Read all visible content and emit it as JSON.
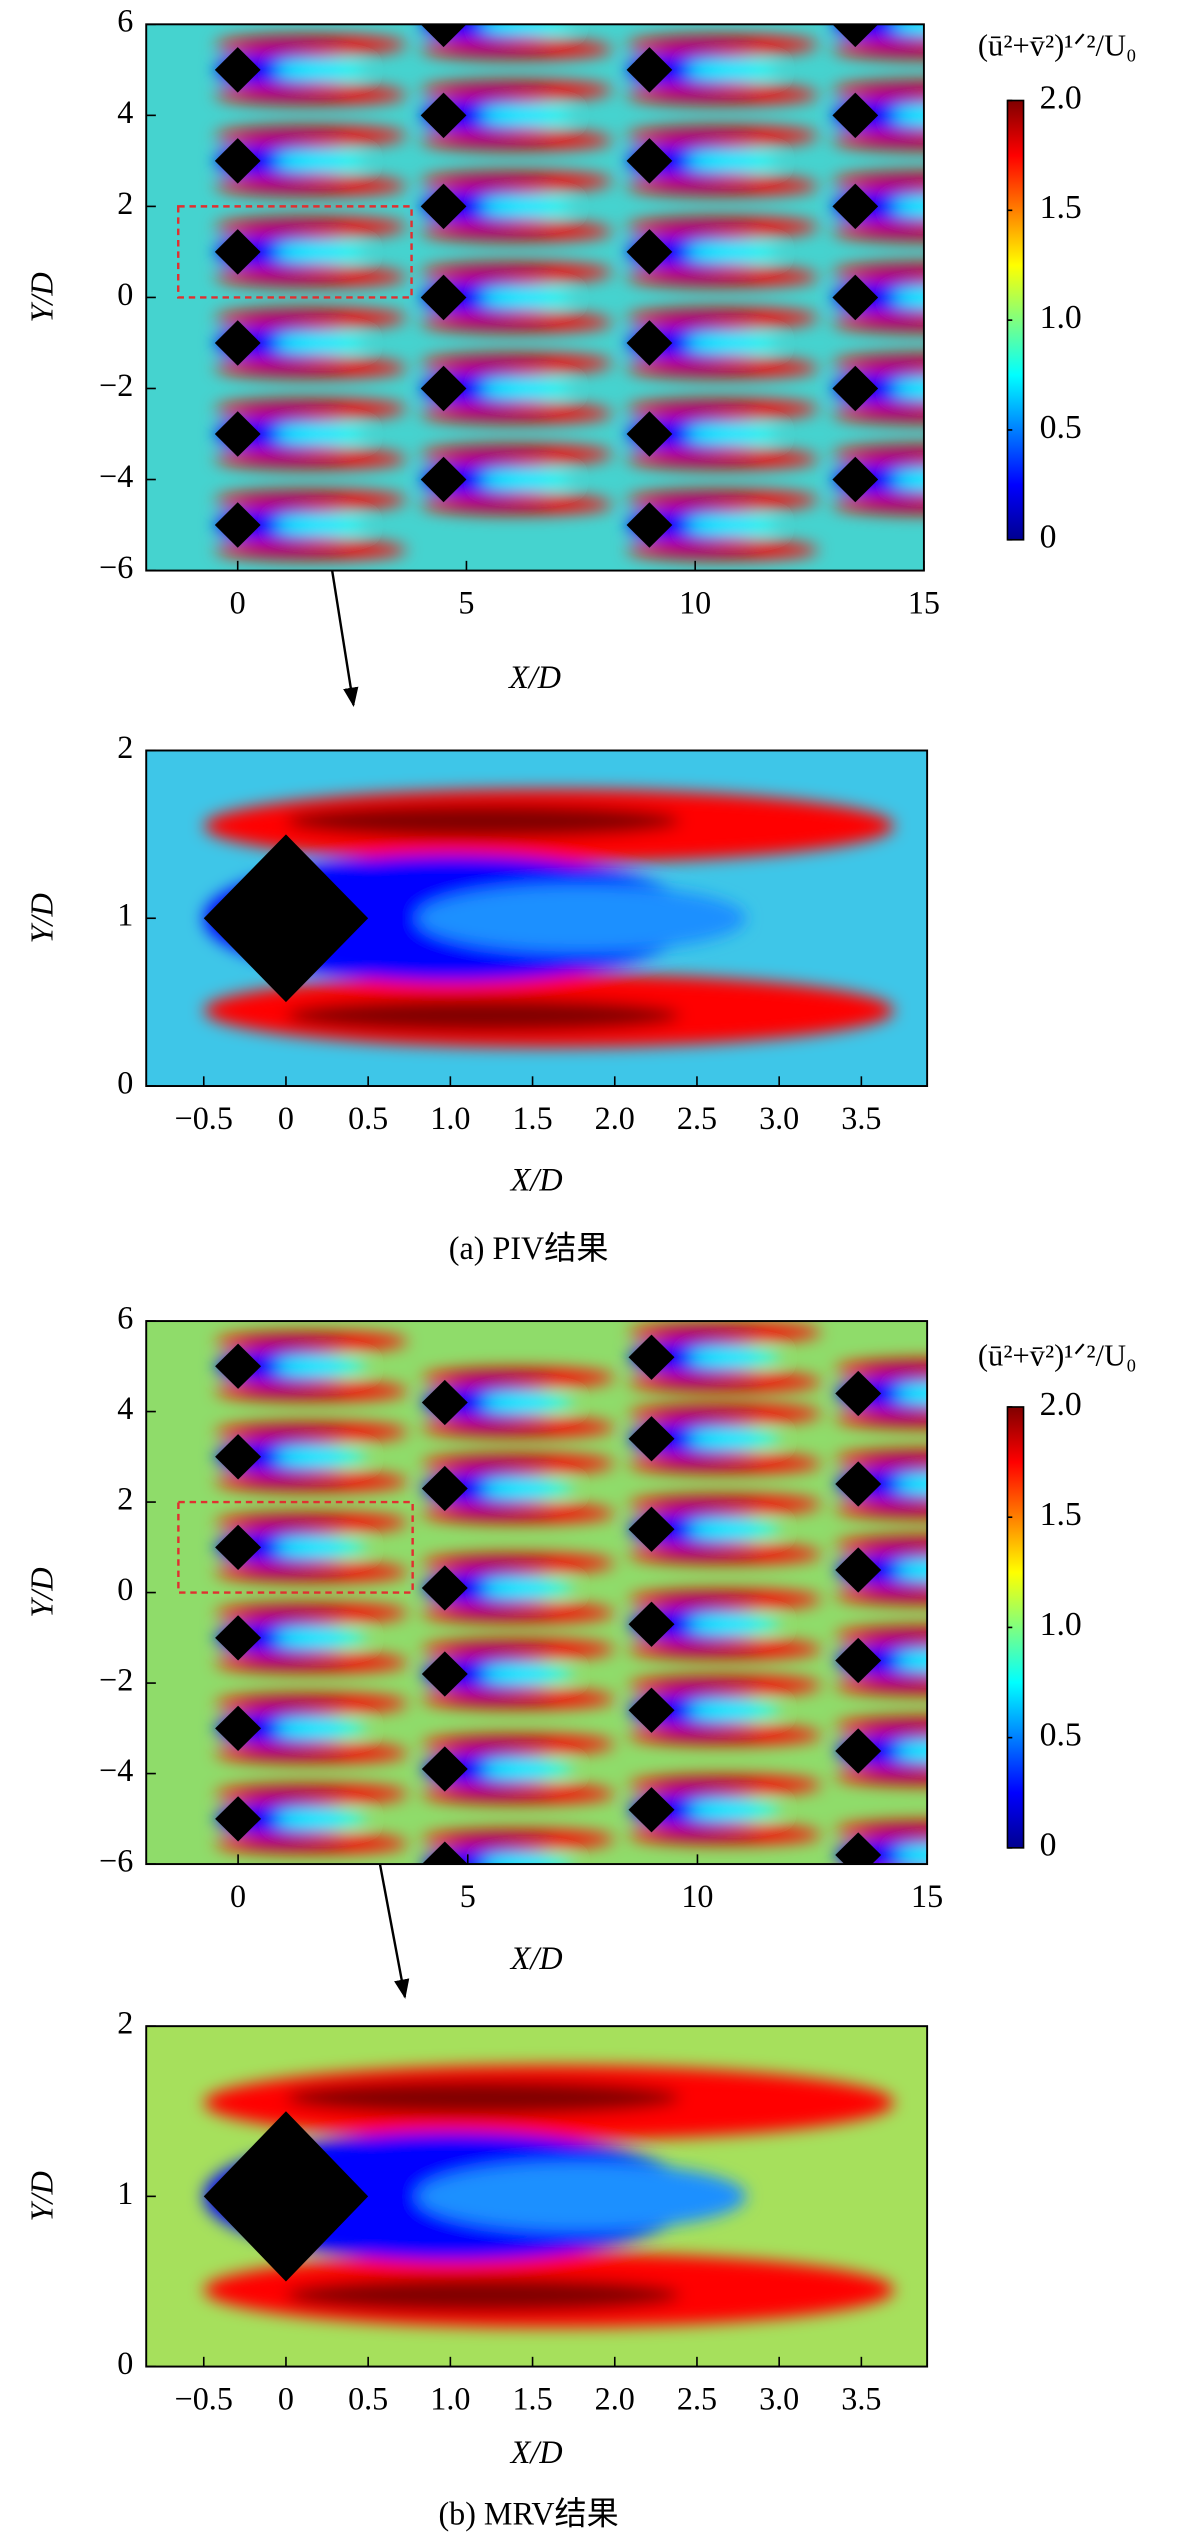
{
  "chart_data": [
    {
      "type": "contour",
      "colormap": "jet",
      "xlabel": "X/D",
      "ylabel": "Y/D",
      "xlim": [
        -2,
        15
      ],
      "ylim": [
        -6,
        6
      ],
      "xticks": [
        0,
        5,
        10,
        15
      ],
      "yticks": [
        {
          "value": -6,
          "label": "−6"
        },
        {
          "value": -4,
          "label": "−4"
        },
        {
          "value": -2,
          "label": "−2"
        },
        0,
        2,
        4,
        6
      ],
      "clim": [
        0,
        2
      ],
      "cticks": [
        0,
        0.5,
        {
          "value": 1,
          "label": "1.0"
        },
        1.5,
        {
          "value": 2,
          "label": "2.0"
        }
      ],
      "colorbar_label": "(ū²+v̄²)¹ᐟ²/U₀",
      "obstacles": {
        "x": [
          0,
          0,
          0,
          0,
          0,
          0,
          4.5,
          4.5,
          4.5,
          4.5,
          4.5,
          4.5,
          9,
          9,
          9,
          9,
          9,
          9,
          13.5,
          13.5,
          13.5,
          13.5,
          13.5,
          13.5
        ],
        "y": [
          5,
          3,
          1,
          -1,
          -3,
          -5,
          6,
          4,
          2,
          0,
          -2,
          -4,
          5,
          3,
          1,
          -1,
          -3,
          -5,
          6,
          4,
          2,
          0,
          -2,
          -4
        ]
      }
    },
    {
      "type": "contour",
      "colormap": "jet",
      "xlabel": "X/D",
      "ylabel": "Y/D",
      "xlim": [
        -0.85,
        3.9
      ],
      "ylim": [
        0,
        2
      ],
      "xticks": [
        {
          "value": -0.5,
          "label": "−0.5"
        },
        0,
        0.5,
        {
          "value": 1,
          "label": "1.0"
        },
        1.5,
        {
          "value": 2,
          "label": "2.0"
        },
        2.5,
        {
          "value": 3,
          "label": "3.0"
        },
        3.5
      ],
      "yticks": [
        0,
        1,
        2
      ],
      "caption": "(a) PIV结果",
      "obstacles": {
        "x": [
          0
        ],
        "y": [
          1
        ]
      }
    },
    {
      "type": "contour",
      "colormap": "jet",
      "xlabel": "X/D",
      "ylabel": "Y/D",
      "xlim": [
        -2,
        15
      ],
      "ylim": [
        -6,
        6
      ],
      "xticks": [
        0,
        5,
        10,
        15
      ],
      "yticks": [
        {
          "value": -6,
          "label": "−6"
        },
        {
          "value": -4,
          "label": "−4"
        },
        {
          "value": -2,
          "label": "−2"
        },
        0,
        2,
        4,
        6
      ],
      "clim": [
        0,
        2
      ],
      "cticks": [
        0,
        0.5,
        {
          "value": 1,
          "label": "1.0"
        },
        1.5,
        {
          "value": 2,
          "label": "2.0"
        }
      ],
      "colorbar_label": "(ū²+v̄²)¹ᐟ²/U₀",
      "obstacles": {
        "x": [
          0,
          0,
          0,
          0,
          0,
          0,
          4.5,
          4.5,
          4.5,
          4.5,
          4.5,
          4.5,
          9,
          9,
          9,
          9,
          9,
          9,
          13.5,
          13.5,
          13.5,
          13.5,
          13.5,
          13.5
        ],
        "y": [
          5,
          3,
          1,
          -1,
          -3,
          -5,
          4.2,
          2.3,
          0.1,
          -1.8,
          -3.9,
          -6,
          5.2,
          3.4,
          1.4,
          -0.7,
          -2.6,
          -4.8,
          4.4,
          2.4,
          0.5,
          -1.5,
          -3.5,
          -5.8
        ]
      }
    },
    {
      "type": "contour",
      "colormap": "jet",
      "xlabel": "X/D",
      "ylabel": "Y/D",
      "xlim": [
        -0.85,
        3.9
      ],
      "ylim": [
        0,
        2
      ],
      "xticks": [
        {
          "value": -0.5,
          "label": "−0.5"
        },
        0,
        0.5,
        {
          "value": 1,
          "label": "1.0"
        },
        1.5,
        {
          "value": 2,
          "label": "2.0"
        },
        2.5,
        {
          "value": 3,
          "label": "3.0"
        },
        3.5
      ],
      "yticks": [
        0,
        1,
        2
      ],
      "caption": "(b) MRV结果",
      "obstacles": {
        "x": [
          0
        ],
        "y": [
          1
        ]
      }
    }
  ]
}
